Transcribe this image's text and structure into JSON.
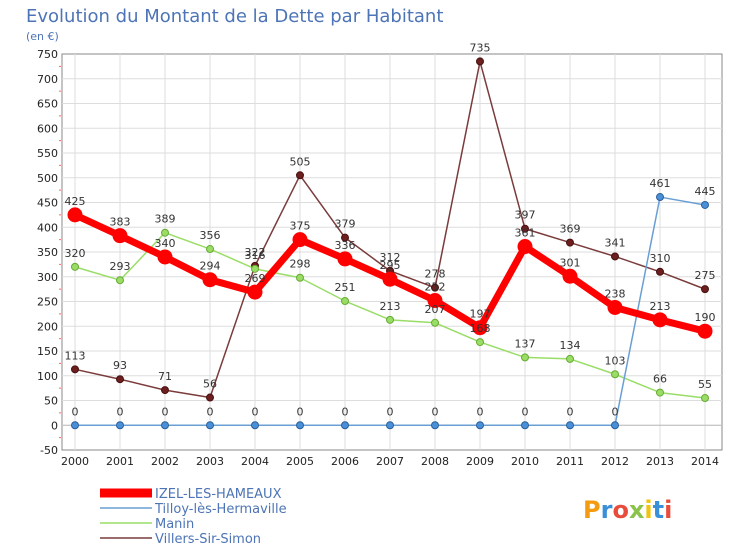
{
  "chart_data": {
    "type": "line",
    "title": "Evolution du Montant de la Dette par Habitant",
    "subtitle": "(en €)",
    "xlabel": "",
    "ylabel": "",
    "x": [
      "2000",
      "2001",
      "2002",
      "2003",
      "2004",
      "2005",
      "2006",
      "2007",
      "2008",
      "2009",
      "2010",
      "2011",
      "2012",
      "2013",
      "2014"
    ],
    "ylim": [
      -50,
      750
    ],
    "yticks": [
      -50,
      0,
      50,
      100,
      150,
      200,
      250,
      300,
      350,
      400,
      450,
      500,
      550,
      600,
      650,
      700,
      750
    ],
    "grid": true,
    "legend_position": "bottom-left",
    "series": [
      {
        "name": "IZEL-LES-HAMEAUX",
        "color": "#ff0000",
        "values": [
          425,
          383,
          340,
          294,
          269,
          375,
          336,
          295,
          252,
          197,
          361,
          301,
          238,
          213,
          190
        ]
      },
      {
        "name": "Tilloy-lès-Hermaville",
        "color": "#6a9fd4",
        "values": [
          0,
          0,
          0,
          0,
          0,
          0,
          0,
          0,
          0,
          0,
          0,
          0,
          0,
          461,
          445
        ]
      },
      {
        "name": "Manin",
        "color": "#99dd66",
        "values": [
          320,
          293,
          389,
          356,
          316,
          298,
          251,
          213,
          207,
          168,
          137,
          134,
          103,
          66,
          55
        ]
      },
      {
        "name": "Villers-Sir-Simon",
        "color": "#7a3b3b",
        "values": [
          113,
          93,
          71,
          56,
          322,
          505,
          379,
          312,
          278,
          735,
          397,
          369,
          341,
          310,
          275
        ]
      }
    ]
  },
  "brand": {
    "text": "Proxiti"
  }
}
